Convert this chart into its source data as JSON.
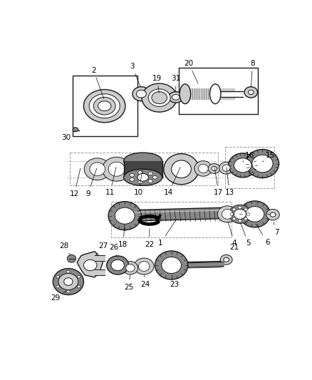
{
  "bg_color": "#ffffff",
  "fig_width": 4.38,
  "fig_height": 5.33,
  "dpi": 100,
  "line_color": "#1a1a1a",
  "gray_light": "#cccccc",
  "gray_med": "#888888",
  "gray_dark": "#444444"
}
